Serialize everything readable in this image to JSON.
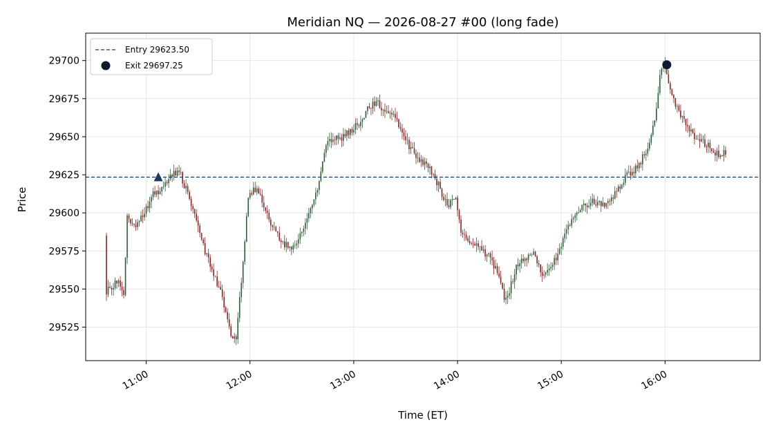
{
  "chart_data": {
    "type": "candlestick",
    "title": "Meridian NQ — 2026-08-27 #00  (long fade)",
    "xlabel": "Time (ET)",
    "ylabel": "Price",
    "x_range": [
      "10:25",
      "16:55"
    ],
    "ylim": [
      29503,
      29718
    ],
    "x_ticks": [
      "11:00",
      "12:00",
      "13:00",
      "14:00",
      "15:00",
      "16:00"
    ],
    "y_ticks": [
      29525,
      29550,
      29575,
      29600,
      29625,
      29650,
      29675,
      29700
    ],
    "grid": true,
    "legend_position": "top-left",
    "colors": {
      "up": "#2e5e3a",
      "down": "#8b2626",
      "entry": "#1f3a5f",
      "exit": "#0e1a30"
    },
    "entry": {
      "label": "Entry 29623.50",
      "price": 29623.5,
      "time": "11:07"
    },
    "exit": {
      "label": "Exit 29697.25",
      "price": 29697.25,
      "time": "16:01"
    },
    "bars_per_minute": 1,
    "price_path": [
      [
        "10:37",
        29585
      ],
      [
        "10:38",
        29548
      ],
      [
        "10:45",
        29556
      ],
      [
        "10:48",
        29548
      ],
      [
        "10:50",
        29598
      ],
      [
        "10:55",
        29590
      ],
      [
        "11:00",
        29600
      ],
      [
        "11:05",
        29612
      ],
      [
        "11:10",
        29615
      ],
      [
        "11:15",
        29625
      ],
      [
        "11:20",
        29628
      ],
      [
        "11:25",
        29612
      ],
      [
        "11:30",
        29597
      ],
      [
        "11:35",
        29575
      ],
      [
        "11:40",
        29560
      ],
      [
        "11:45",
        29545
      ],
      [
        "11:50",
        29518
      ],
      [
        "11:53",
        29518
      ],
      [
        "11:56",
        29555
      ],
      [
        "12:00",
        29610
      ],
      [
        "12:05",
        29617
      ],
      [
        "12:10",
        29600
      ],
      [
        "12:15",
        29590
      ],
      [
        "12:20",
        29580
      ],
      [
        "12:25",
        29578
      ],
      [
        "12:30",
        29585
      ],
      [
        "12:35",
        29600
      ],
      [
        "12:40",
        29615
      ],
      [
        "12:45",
        29645
      ],
      [
        "12:50",
        29648
      ],
      [
        "12:55",
        29650
      ],
      [
        "13:00",
        29655
      ],
      [
        "13:05",
        29660
      ],
      [
        "13:10",
        29670
      ],
      [
        "13:15",
        29672
      ],
      [
        "13:20",
        29665
      ],
      [
        "13:25",
        29662
      ],
      [
        "13:30",
        29650
      ],
      [
        "13:35",
        29640
      ],
      [
        "13:40",
        29635
      ],
      [
        "13:45",
        29628
      ],
      [
        "13:50",
        29618
      ],
      [
        "13:55",
        29605
      ],
      [
        "14:00",
        29610
      ],
      [
        "14:03",
        29588
      ],
      [
        "14:10",
        29580
      ],
      [
        "14:15",
        29575
      ],
      [
        "14:20",
        29570
      ],
      [
        "14:25",
        29560
      ],
      [
        "14:28",
        29545
      ],
      [
        "14:30",
        29545
      ],
      [
        "14:35",
        29565
      ],
      [
        "14:40",
        29570
      ],
      [
        "14:45",
        29572
      ],
      [
        "14:50",
        29560
      ],
      [
        "14:55",
        29565
      ],
      [
        "15:00",
        29575
      ],
      [
        "15:05",
        29590
      ],
      [
        "15:10",
        29600
      ],
      [
        "15:15",
        29605
      ],
      [
        "15:20",
        29608
      ],
      [
        "15:25",
        29605
      ],
      [
        "15:30",
        29610
      ],
      [
        "15:35",
        29618
      ],
      [
        "15:40",
        29626
      ],
      [
        "15:45",
        29630
      ],
      [
        "15:50",
        29640
      ],
      [
        "15:55",
        29660
      ],
      [
        "15:58",
        29690
      ],
      [
        "16:01",
        29697
      ],
      [
        "16:05",
        29675
      ],
      [
        "16:10",
        29665
      ],
      [
        "16:15",
        29655
      ],
      [
        "16:20",
        29648
      ],
      [
        "16:25",
        29645
      ],
      [
        "16:30",
        29638
      ],
      [
        "16:35",
        29640
      ]
    ],
    "seed": 8271
  }
}
